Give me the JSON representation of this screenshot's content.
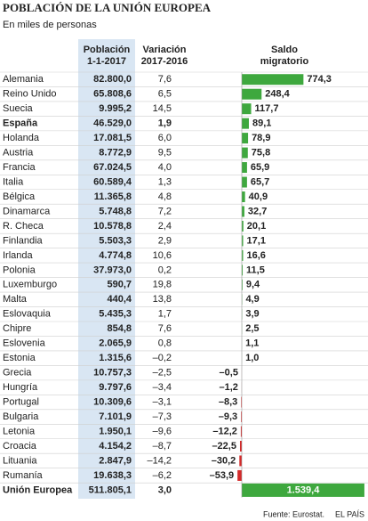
{
  "header": {
    "title": "POBLACIÓN DE LA UNIÓN EUROPEA",
    "subtitle": "En miles de personas"
  },
  "table": {
    "columns": [
      [
        "Población",
        "1-1-2017"
      ],
      [
        "Variación",
        "2017-2016"
      ],
      [
        "Saldo",
        "migratorio"
      ]
    ],
    "positive_color": "#3ea83e",
    "negative_color": "#d42a2a",
    "rows": [
      {
        "country": "Alemania",
        "population": "82.800,0",
        "variation": "7,6",
        "balance": {
          "value": 774.3,
          "label": "774,3"
        }
      },
      {
        "country": "Reino Unido",
        "population": "65.808,6",
        "variation": "6,5",
        "balance": {
          "value": 248.4,
          "label": "248,4"
        }
      },
      {
        "country": "Suecia",
        "population": "9.995,2",
        "variation": "14,5",
        "balance": {
          "value": 117.7,
          "label": "117,7"
        }
      },
      {
        "country": "España",
        "population": "46.529,0",
        "variation": "1,9",
        "balance": {
          "value": 89.1,
          "label": "89,1"
        },
        "highlight": true
      },
      {
        "country": "Holanda",
        "population": "17.081,5",
        "variation": "6,0",
        "balance": {
          "value": 78.9,
          "label": "78,9"
        }
      },
      {
        "country": "Austria",
        "population": "8.772,9",
        "variation": "9,5",
        "balance": {
          "value": 75.8,
          "label": "75,8"
        }
      },
      {
        "country": "Francia",
        "population": "67.024,5",
        "variation": "4,0",
        "balance": {
          "value": 65.9,
          "label": "65,9"
        }
      },
      {
        "country": "Italia",
        "population": "60.589,4",
        "variation": "1,3",
        "balance": {
          "value": 65.7,
          "label": "65,7"
        }
      },
      {
        "country": "Bélgica",
        "population": "11.365,8",
        "variation": "4,8",
        "balance": {
          "value": 40.9,
          "label": "40,9"
        }
      },
      {
        "country": "Dinamarca",
        "population": "5.748,8",
        "variation": "7,2",
        "balance": {
          "value": 32.7,
          "label": "32,7"
        }
      },
      {
        "country": "R. Checa",
        "population": "10.578,8",
        "variation": "2,4",
        "balance": {
          "value": 20.1,
          "label": "20,1"
        }
      },
      {
        "country": "Finlandia",
        "population": "5.503,3",
        "variation": "2,9",
        "balance": {
          "value": 17.1,
          "label": "17,1"
        }
      },
      {
        "country": "Irlanda",
        "population": "4.774,8",
        "variation": "10,6",
        "balance": {
          "value": 16.6,
          "label": "16,6"
        }
      },
      {
        "country": "Polonia",
        "population": "37.973,0",
        "variation": "0,2",
        "balance": {
          "value": 11.5,
          "label": "11,5"
        }
      },
      {
        "country": "Luxemburgo",
        "population": "590,7",
        "variation": "19,8",
        "balance": {
          "value": 9.4,
          "label": "9,4"
        }
      },
      {
        "country": "Malta",
        "population": "440,4",
        "variation": "13,8",
        "balance": {
          "value": 4.9,
          "label": "4,9"
        }
      },
      {
        "country": "Eslovaquia",
        "population": "5.435,3",
        "variation": "1,7",
        "balance": {
          "value": 3.9,
          "label": "3,9"
        }
      },
      {
        "country": "Chipre",
        "population": "854,8",
        "variation": "7,6",
        "balance": {
          "value": 2.5,
          "label": "2,5"
        }
      },
      {
        "country": "Eslovenia",
        "population": "2.065,9",
        "variation": "0,8",
        "balance": {
          "value": 1.1,
          "label": "1,1"
        }
      },
      {
        "country": "Estonia",
        "population": "1.315,6",
        "variation": "–0,2",
        "balance": {
          "value": 1.0,
          "label": "1,0"
        }
      },
      {
        "country": "Grecia",
        "population": "10.757,3",
        "variation": "–2,5",
        "balance": {
          "value": -0.5,
          "label": "–0,5"
        }
      },
      {
        "country": "Hungría",
        "population": "9.797,6",
        "variation": "–3,4",
        "balance": {
          "value": -1.2,
          "label": "–1,2"
        }
      },
      {
        "country": "Portugal",
        "population": "10.309,6",
        "variation": "–3,1",
        "balance": {
          "value": -8.3,
          "label": "–8,3"
        }
      },
      {
        "country": "Bulgaria",
        "population": "7.101,9",
        "variation": "–7,3",
        "balance": {
          "value": -9.3,
          "label": "–9,3"
        }
      },
      {
        "country": "Letonia",
        "population": "1.950,1",
        "variation": "–9,6",
        "balance": {
          "value": -12.2,
          "label": "–12,2"
        }
      },
      {
        "country": "Croacia",
        "population": "4.154,2",
        "variation": "–8,7",
        "balance": {
          "value": -22.5,
          "label": "–22,5"
        }
      },
      {
        "country": "Lituania",
        "population": "2.847,9",
        "variation": "–14,2",
        "balance": {
          "value": -30.2,
          "label": "–30,2"
        }
      },
      {
        "country": "Rumanía",
        "population": "19.638,3",
        "variation": "–6,2",
        "balance": {
          "value": -53.9,
          "label": "–53,9"
        }
      }
    ],
    "total": {
      "country": "Unión Europea",
      "population": "511.805,1",
      "variation": "3,0",
      "balance": {
        "value": 1539.4,
        "label": "1.539,4"
      }
    }
  },
  "footer": {
    "source": "Fuente: Eurostat.",
    "credit": "EL PAÍS"
  }
}
